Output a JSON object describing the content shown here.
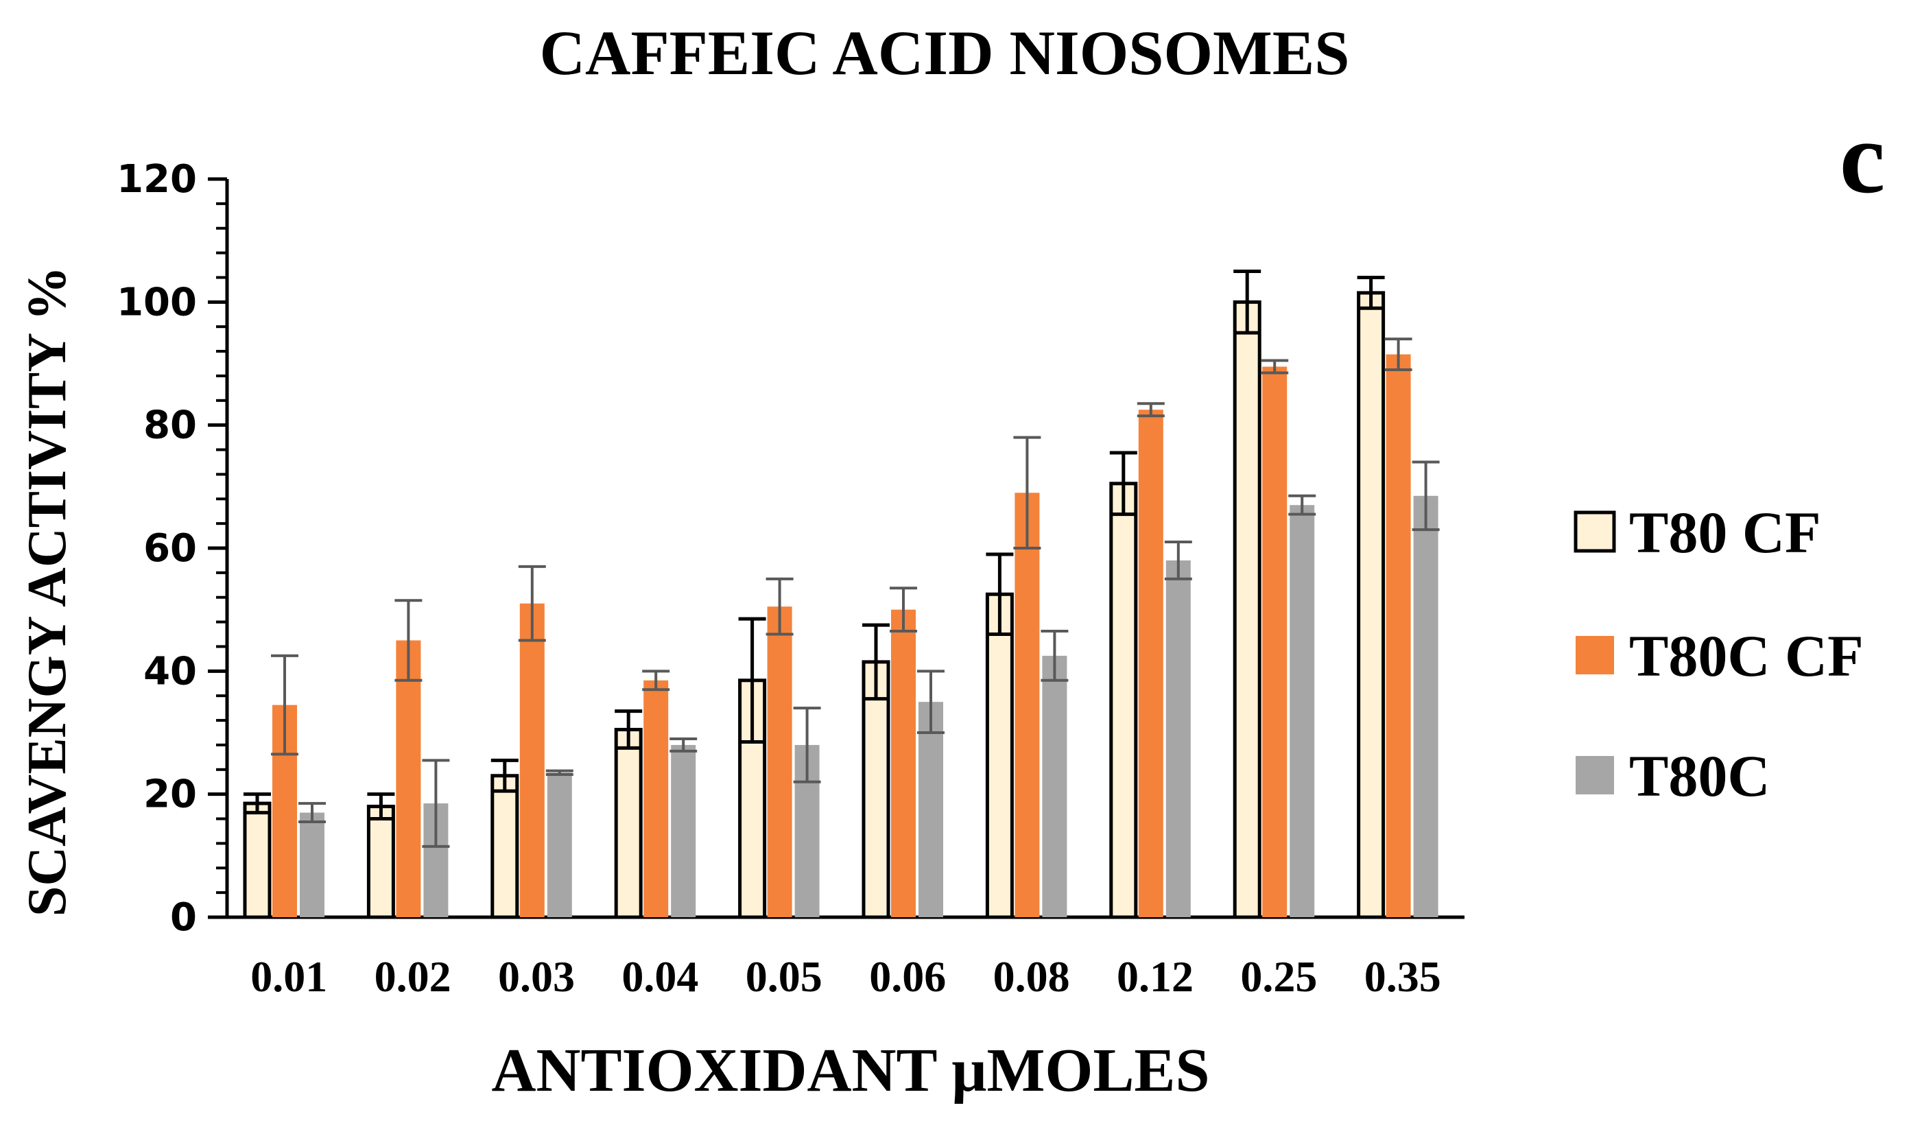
{
  "chart_data": {
    "type": "bar",
    "title": "CAFFEIC ACID NIOSOMES",
    "panel_label": "c",
    "xlabel": "ANTIOXIDANT μMOLES",
    "ylabel": "SCAVENGY ACTIVITY %",
    "ylim": [
      0,
      120
    ],
    "yticks": [
      "0",
      "20",
      "40",
      "60",
      "80",
      "100",
      "120"
    ],
    "categories": [
      "0.01",
      "0.02",
      "0.03",
      "0.04",
      "0.05",
      "0.06",
      "0.08",
      "0.12",
      "0.25",
      "0.35"
    ],
    "legend_position": "right",
    "series": [
      {
        "name": "T80 CF",
        "color": "#FFF2D6",
        "outlined": true,
        "values": [
          18.5,
          18,
          23,
          30.5,
          38.5,
          41.5,
          52.5,
          70.5,
          100,
          101.5
        ],
        "errors": [
          1.5,
          2,
          2.5,
          3,
          10,
          6,
          6.5,
          5,
          5,
          2.5
        ]
      },
      {
        "name": "T80C CF",
        "color": "#F4823A",
        "outlined": false,
        "values": [
          34.5,
          45,
          51,
          38.5,
          50.5,
          50,
          69,
          82.5,
          89.5,
          91.5
        ],
        "errors": [
          8,
          6.5,
          6,
          1.5,
          4.5,
          3.5,
          9,
          1,
          1,
          2.5
        ]
      },
      {
        "name": "T80C",
        "color": "#A6A6A6",
        "outlined": false,
        "values": [
          17,
          18.5,
          23.5,
          28,
          28,
          35,
          42.5,
          58,
          67,
          68.5
        ],
        "errors": [
          1.5,
          7,
          0.3,
          1,
          6,
          5,
          4,
          3,
          1.5,
          5.5
        ]
      }
    ]
  }
}
